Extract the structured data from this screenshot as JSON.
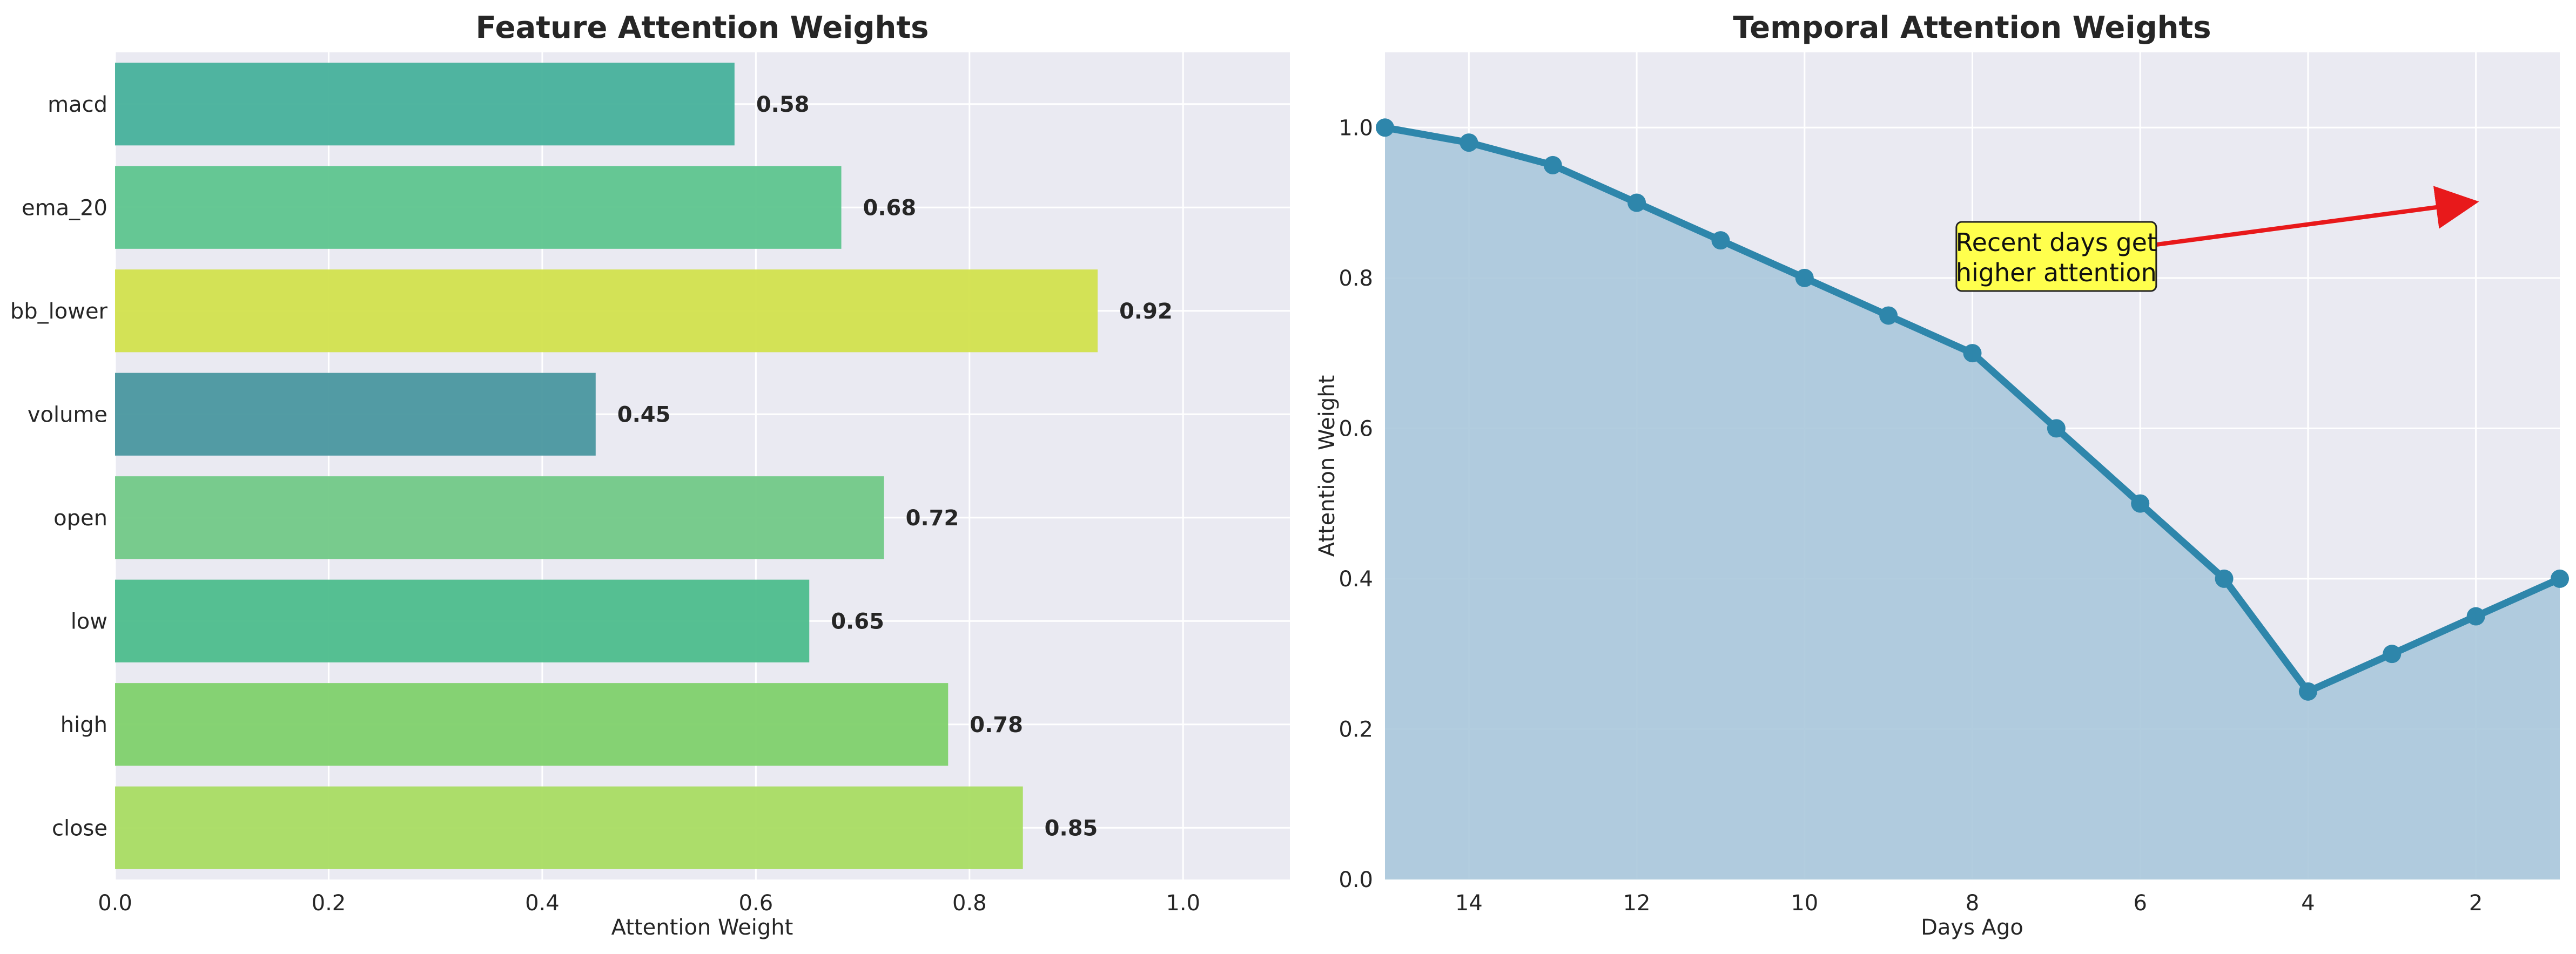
{
  "chart_data": [
    {
      "type": "bar",
      "orientation": "horizontal",
      "title": "Feature Attention Weights",
      "xlabel": "Attention Weight",
      "ylabel": "",
      "categories": [
        "close",
        "high",
        "low",
        "open",
        "volume",
        "bb_lower",
        "ema_20",
        "macd"
      ],
      "values": [
        0.85,
        0.78,
        0.65,
        0.72,
        0.45,
        0.92,
        0.68,
        0.58
      ],
      "value_labels": [
        "0.85",
        "0.78",
        "0.65",
        "0.72",
        "0.45",
        "0.92",
        "0.68",
        "0.58"
      ],
      "xlim": [
        0,
        1.1
      ],
      "xticks": [
        0,
        0.2,
        0.4,
        0.6,
        0.8,
        1.0
      ],
      "xtick_labels": [
        "0.0",
        "0.2",
        "0.4",
        "0.6",
        "0.8",
        "1.0"
      ],
      "colormap": "viridis",
      "colors": [
        "#a9dc62",
        "#7fd16b",
        "#4dbd8c",
        "#72c987",
        "#4a979f",
        "#d2e24d",
        "#5ec58e",
        "#47b19b"
      ],
      "grid": true
    },
    {
      "type": "area",
      "title": "Temporal Attention Weights",
      "xlabel": "Days Ago",
      "ylabel": "Attention Weight",
      "x": [
        15,
        14,
        13,
        12,
        11,
        10,
        9,
        8,
        7,
        6,
        5,
        4,
        3,
        2,
        1
      ],
      "y": [
        1.0,
        0.98,
        0.95,
        0.9,
        0.85,
        0.8,
        0.75,
        0.7,
        0.6,
        0.5,
        0.4,
        0.25,
        0.3,
        0.35,
        0.4
      ],
      "xlim": [
        15,
        1
      ],
      "x_inverted": true,
      "ylim": [
        0,
        1.1
      ],
      "xticks": [
        14,
        12,
        10,
        8,
        6,
        4,
        2
      ],
      "xtick_labels": [
        "14",
        "12",
        "10",
        "8",
        "6",
        "4",
        "2"
      ],
      "yticks": [
        0,
        0.2,
        0.4,
        0.6,
        0.8,
        1.0
      ],
      "ytick_labels": [
        "0.0",
        "0.2",
        "0.4",
        "0.6",
        "0.8",
        "1.0"
      ],
      "line_color": "#2e86ab",
      "fill_color": "#aac8dc",
      "grid": true,
      "annotation": {
        "lines": [
          "Recent days get",
          "higher attention"
        ],
        "text_at": [
          7,
          0.83
        ],
        "arrow_to": [
          2,
          0.9
        ],
        "box_color": "#ffff4d",
        "arrow_color": "#e8191b"
      }
    }
  ],
  "style": {
    "plot_bg": "#eaeaf2",
    "grid_color": "#ffffff"
  }
}
